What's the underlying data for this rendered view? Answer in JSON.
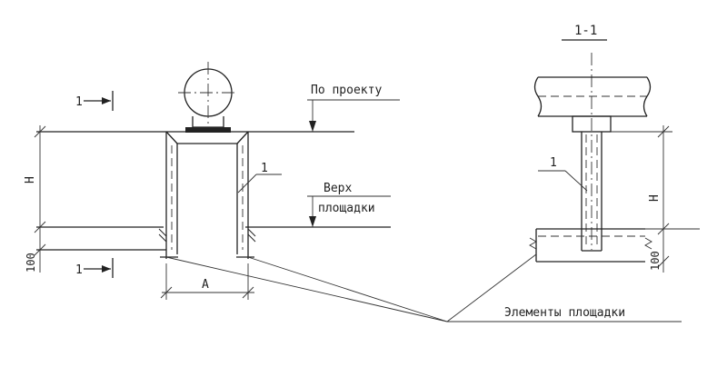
{
  "labels": {
    "section_title": "1-1",
    "by_project": "По проекту",
    "platform_top_line1": "Верх",
    "platform_top_line2": "площадки",
    "platform_elements": "Элементы площадки",
    "marker_left": "1",
    "marker_right": "1",
    "dim_h_left": "Н",
    "dim_h_right": "Н",
    "dim_100_left": "100",
    "dim_100_right": "100",
    "dim_a": "А",
    "section_mark_top": "1",
    "section_mark_bottom": "1"
  }
}
